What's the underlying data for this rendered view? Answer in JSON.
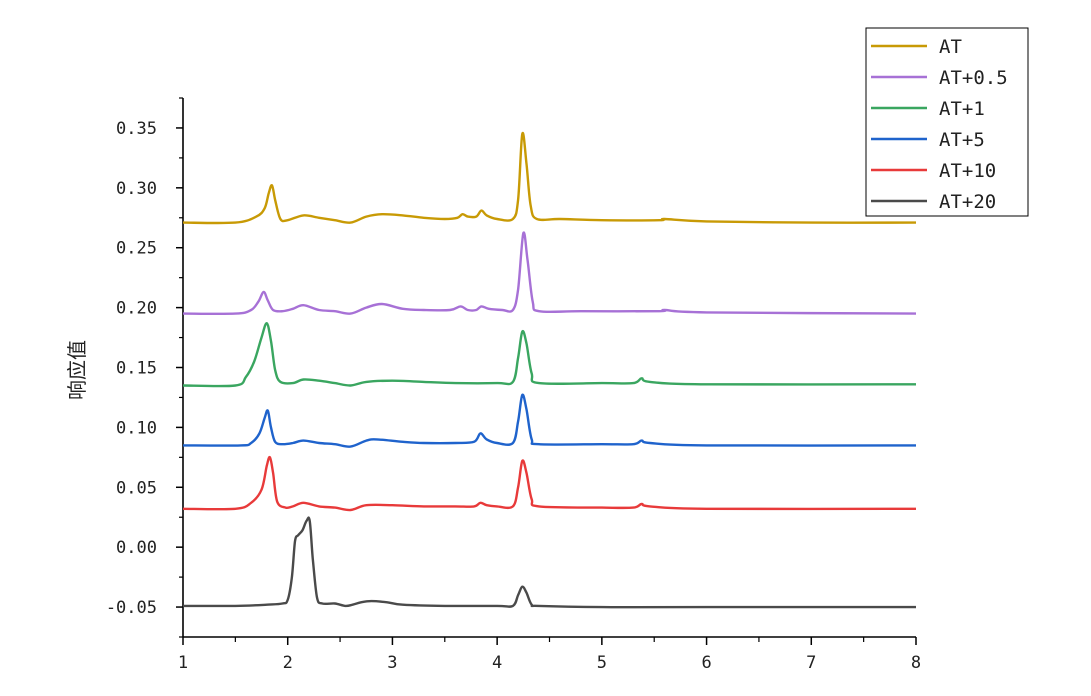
{
  "chart_data": {
    "type": "line",
    "title": "",
    "xlabel": "",
    "ylabel": "响应值",
    "xlim": [
      1,
      8
    ],
    "ylim": [
      -0.075,
      0.375
    ],
    "xticks": [
      1,
      2,
      3,
      4,
      5,
      6,
      7,
      8
    ],
    "yticks": [
      -0.05,
      0.0,
      0.05,
      0.1,
      0.15,
      0.2,
      0.25,
      0.3,
      0.35
    ],
    "ytick_labels": [
      "-0.05",
      "0.00",
      "0.05",
      "0.10",
      "0.15",
      "0.20",
      "0.25",
      "0.30",
      "0.35"
    ],
    "grid": false,
    "legend_position": "top-right",
    "series": [
      {
        "name": "AT",
        "color": "#c89a05",
        "points": [
          [
            1.0,
            0.271
          ],
          [
            1.5,
            0.271
          ],
          [
            1.7,
            0.276
          ],
          [
            1.78,
            0.283
          ],
          [
            1.82,
            0.296
          ],
          [
            1.85,
            0.302
          ],
          [
            1.88,
            0.29
          ],
          [
            1.93,
            0.274
          ],
          [
            2.0,
            0.273
          ],
          [
            2.15,
            0.277
          ],
          [
            2.3,
            0.275
          ],
          [
            2.45,
            0.273
          ],
          [
            2.6,
            0.271
          ],
          [
            2.75,
            0.276
          ],
          [
            2.9,
            0.278
          ],
          [
            3.1,
            0.277
          ],
          [
            3.3,
            0.275
          ],
          [
            3.5,
            0.274
          ],
          [
            3.62,
            0.275
          ],
          [
            3.67,
            0.278
          ],
          [
            3.72,
            0.276
          ],
          [
            3.8,
            0.276
          ],
          [
            3.85,
            0.281
          ],
          [
            3.9,
            0.277
          ],
          [
            4.0,
            0.274
          ],
          [
            4.15,
            0.274
          ],
          [
            4.2,
            0.29
          ],
          [
            4.24,
            0.345
          ],
          [
            4.28,
            0.32
          ],
          [
            4.32,
            0.285
          ],
          [
            4.38,
            0.274
          ],
          [
            4.6,
            0.274
          ],
          [
            5.0,
            0.273
          ],
          [
            5.55,
            0.273
          ],
          [
            5.6,
            0.274
          ],
          [
            6.0,
            0.272
          ],
          [
            7.0,
            0.271
          ],
          [
            8.0,
            0.271
          ]
        ]
      },
      {
        "name": "AT+0.5",
        "color": "#a771d6",
        "points": [
          [
            1.0,
            0.195
          ],
          [
            1.5,
            0.195
          ],
          [
            1.65,
            0.198
          ],
          [
            1.72,
            0.205
          ],
          [
            1.77,
            0.213
          ],
          [
            1.81,
            0.206
          ],
          [
            1.86,
            0.198
          ],
          [
            1.95,
            0.197
          ],
          [
            2.05,
            0.199
          ],
          [
            2.15,
            0.202
          ],
          [
            2.3,
            0.198
          ],
          [
            2.45,
            0.197
          ],
          [
            2.6,
            0.195
          ],
          [
            2.75,
            0.2
          ],
          [
            2.9,
            0.203
          ],
          [
            3.1,
            0.199
          ],
          [
            3.3,
            0.198
          ],
          [
            3.55,
            0.198
          ],
          [
            3.65,
            0.201
          ],
          [
            3.72,
            0.198
          ],
          [
            3.8,
            0.198
          ],
          [
            3.85,
            0.201
          ],
          [
            3.92,
            0.199
          ],
          [
            4.05,
            0.198
          ],
          [
            4.15,
            0.198
          ],
          [
            4.2,
            0.215
          ],
          [
            4.25,
            0.262
          ],
          [
            4.29,
            0.24
          ],
          [
            4.34,
            0.205
          ],
          [
            4.4,
            0.197
          ],
          [
            4.8,
            0.197
          ],
          [
            5.55,
            0.197
          ],
          [
            5.6,
            0.198
          ],
          [
            6.0,
            0.196
          ],
          [
            8.0,
            0.195
          ]
        ]
      },
      {
        "name": "AT+1",
        "color": "#3aa660",
        "points": [
          [
            1.0,
            0.135
          ],
          [
            1.5,
            0.135
          ],
          [
            1.6,
            0.142
          ],
          [
            1.68,
            0.155
          ],
          [
            1.75,
            0.175
          ],
          [
            1.8,
            0.187
          ],
          [
            1.84,
            0.172
          ],
          [
            1.88,
            0.148
          ],
          [
            1.93,
            0.138
          ],
          [
            2.05,
            0.137
          ],
          [
            2.15,
            0.14
          ],
          [
            2.3,
            0.139
          ],
          [
            2.45,
            0.137
          ],
          [
            2.6,
            0.135
          ],
          [
            2.75,
            0.138
          ],
          [
            3.0,
            0.139
          ],
          [
            3.3,
            0.138
          ],
          [
            3.6,
            0.137
          ],
          [
            4.0,
            0.137
          ],
          [
            4.15,
            0.138
          ],
          [
            4.2,
            0.158
          ],
          [
            4.24,
            0.18
          ],
          [
            4.28,
            0.17
          ],
          [
            4.33,
            0.145
          ],
          [
            4.4,
            0.137
          ],
          [
            5.0,
            0.137
          ],
          [
            5.3,
            0.137
          ],
          [
            5.38,
            0.141
          ],
          [
            5.46,
            0.138
          ],
          [
            6.0,
            0.136
          ],
          [
            8.0,
            0.136
          ]
        ]
      },
      {
        "name": "AT+5",
        "color": "#1f63cc",
        "points": [
          [
            1.0,
            0.085
          ],
          [
            1.55,
            0.085
          ],
          [
            1.65,
            0.087
          ],
          [
            1.73,
            0.095
          ],
          [
            1.78,
            0.108
          ],
          [
            1.81,
            0.114
          ],
          [
            1.84,
            0.1
          ],
          [
            1.88,
            0.088
          ],
          [
            1.95,
            0.086
          ],
          [
            2.05,
            0.087
          ],
          [
            2.15,
            0.089
          ],
          [
            2.3,
            0.087
          ],
          [
            2.45,
            0.086
          ],
          [
            2.6,
            0.084
          ],
          [
            2.75,
            0.089
          ],
          [
            2.85,
            0.09
          ],
          [
            3.1,
            0.088
          ],
          [
            3.3,
            0.087
          ],
          [
            3.6,
            0.087
          ],
          [
            3.78,
            0.088
          ],
          [
            3.84,
            0.095
          ],
          [
            3.9,
            0.09
          ],
          [
            4.0,
            0.087
          ],
          [
            4.15,
            0.087
          ],
          [
            4.2,
            0.105
          ],
          [
            4.24,
            0.127
          ],
          [
            4.28,
            0.115
          ],
          [
            4.33,
            0.09
          ],
          [
            4.4,
            0.086
          ],
          [
            5.0,
            0.086
          ],
          [
            5.3,
            0.086
          ],
          [
            5.38,
            0.089
          ],
          [
            5.46,
            0.087
          ],
          [
            6.0,
            0.085
          ],
          [
            8.0,
            0.085
          ]
        ]
      },
      {
        "name": "AT+10",
        "color": "#e83a3a",
        "points": [
          [
            1.0,
            0.032
          ],
          [
            1.5,
            0.032
          ],
          [
            1.65,
            0.037
          ],
          [
            1.75,
            0.048
          ],
          [
            1.8,
            0.068
          ],
          [
            1.83,
            0.075
          ],
          [
            1.86,
            0.062
          ],
          [
            1.9,
            0.038
          ],
          [
            1.98,
            0.033
          ],
          [
            2.05,
            0.034
          ],
          [
            2.15,
            0.037
          ],
          [
            2.3,
            0.034
          ],
          [
            2.45,
            0.033
          ],
          [
            2.6,
            0.031
          ],
          [
            2.75,
            0.035
          ],
          [
            3.0,
            0.035
          ],
          [
            3.3,
            0.034
          ],
          [
            3.6,
            0.034
          ],
          [
            3.78,
            0.034
          ],
          [
            3.84,
            0.037
          ],
          [
            3.9,
            0.035
          ],
          [
            4.0,
            0.034
          ],
          [
            4.15,
            0.034
          ],
          [
            4.2,
            0.05
          ],
          [
            4.24,
            0.072
          ],
          [
            4.28,
            0.062
          ],
          [
            4.33,
            0.04
          ],
          [
            4.4,
            0.034
          ],
          [
            5.0,
            0.033
          ],
          [
            5.3,
            0.033
          ],
          [
            5.38,
            0.036
          ],
          [
            5.46,
            0.034
          ],
          [
            6.0,
            0.032
          ],
          [
            8.0,
            0.032
          ]
        ]
      },
      {
        "name": "AT+20",
        "color": "#4a4a4a",
        "points": [
          [
            1.0,
            -0.049
          ],
          [
            1.5,
            -0.049
          ],
          [
            1.8,
            -0.048
          ],
          [
            1.95,
            -0.047
          ],
          [
            2.0,
            -0.044
          ],
          [
            2.04,
            -0.025
          ],
          [
            2.07,
            0.005
          ],
          [
            2.1,
            0.01
          ],
          [
            2.14,
            0.014
          ],
          [
            2.18,
            0.022
          ],
          [
            2.21,
            0.022
          ],
          [
            2.24,
            -0.01
          ],
          [
            2.28,
            -0.042
          ],
          [
            2.33,
            -0.047
          ],
          [
            2.45,
            -0.047
          ],
          [
            2.55,
            -0.049
          ],
          [
            2.62,
            -0.048
          ],
          [
            2.7,
            -0.046
          ],
          [
            2.8,
            -0.045
          ],
          [
            2.95,
            -0.046
          ],
          [
            3.1,
            -0.048
          ],
          [
            3.5,
            -0.049
          ],
          [
            4.0,
            -0.049
          ],
          [
            4.15,
            -0.049
          ],
          [
            4.2,
            -0.04
          ],
          [
            4.24,
            -0.033
          ],
          [
            4.28,
            -0.038
          ],
          [
            4.33,
            -0.048
          ],
          [
            4.4,
            -0.049
          ],
          [
            5.0,
            -0.05
          ],
          [
            6.0,
            -0.05
          ],
          [
            8.0,
            -0.05
          ]
        ]
      }
    ]
  }
}
